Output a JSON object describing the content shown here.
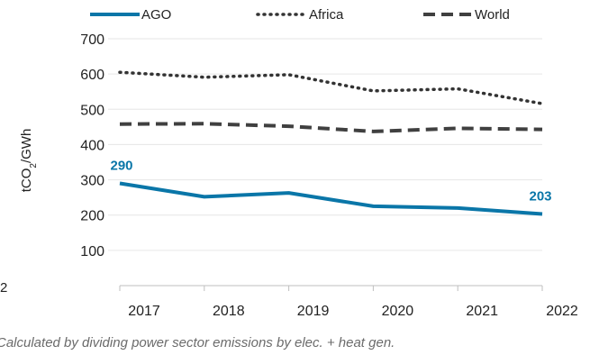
{
  "chart_data": {
    "type": "line",
    "x": [
      "2017",
      "2018",
      "2019",
      "2020",
      "2021",
      "2022"
    ],
    "ylabel_parts": [
      "tCO",
      "2",
      "/GWh"
    ],
    "ylim": [
      0,
      700
    ],
    "yticks": [
      "100",
      "200",
      "300",
      "400",
      "500",
      "600",
      "700"
    ],
    "grid": true,
    "legend_position": "top",
    "series": [
      {
        "name": "AGO",
        "values": [
          290,
          252,
          263,
          225,
          220,
          203
        ],
        "color": "#0a76a8",
        "style": "solid"
      },
      {
        "name": "Africa",
        "values": [
          605,
          591,
          598,
          552,
          558,
          516
        ],
        "color": "#333333",
        "style": "dotted"
      },
      {
        "name": "World",
        "values": [
          458,
          459,
          452,
          437,
          446,
          443
        ],
        "color": "#404040",
        "style": "dashed"
      }
    ],
    "data_labels": [
      {
        "series": "AGO",
        "x": "2017",
        "text": "290"
      },
      {
        "series": "AGO",
        "x": "2022",
        "text": "203"
      }
    ]
  },
  "stray_text": "2",
  "footnote": "Calculated by dividing power sector emissions by elec. + heat gen."
}
